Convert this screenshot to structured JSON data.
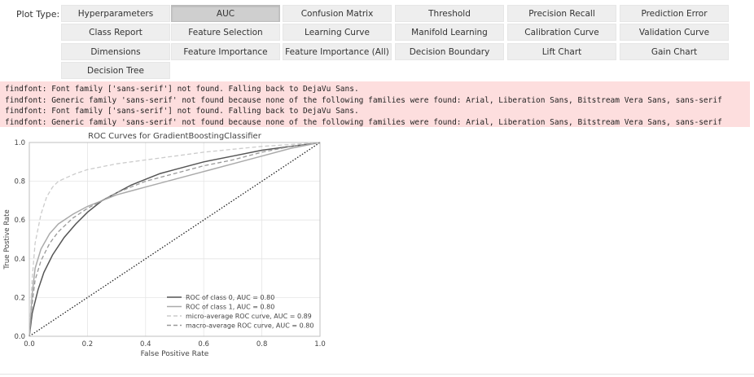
{
  "plot_type_label": "Plot Type:",
  "buttons": [
    {
      "label": "Hyperparameters",
      "active": false
    },
    {
      "label": "AUC",
      "active": true
    },
    {
      "label": "Confusion Matrix",
      "active": false
    },
    {
      "label": "Threshold",
      "active": false
    },
    {
      "label": "Precision Recall",
      "active": false
    },
    {
      "label": "Prediction Error",
      "active": false
    },
    {
      "label": "Class Report",
      "active": false
    },
    {
      "label": "Feature Selection",
      "active": false
    },
    {
      "label": "Learning Curve",
      "active": false
    },
    {
      "label": "Manifold Learning",
      "active": false
    },
    {
      "label": "Calibration Curve",
      "active": false
    },
    {
      "label": "Validation Curve",
      "active": false
    },
    {
      "label": "Dimensions",
      "active": false
    },
    {
      "label": "Feature Importance",
      "active": false
    },
    {
      "label": "Feature Importance (All)",
      "active": false
    },
    {
      "label": "Decision Boundary",
      "active": false
    },
    {
      "label": "Lift Chart",
      "active": false
    },
    {
      "label": "Gain Chart",
      "active": false
    },
    {
      "label": "Decision Tree",
      "active": false
    }
  ],
  "log": {
    "lines": [
      "findfont: Font family ['sans-serif'] not found. Falling back to DejaVu Sans.",
      "findfont: Generic family 'sans-serif' not found because none of the following families were found: Arial, Liberation Sans, Bitstream Vera Sans, sans-serif",
      "findfont: Font family ['sans-serif'] not found. Falling back to DejaVu Sans.",
      "findfont: Generic family 'sans-serif' not found because none of the following families were found: Arial, Liberation Sans, Bitstream Vera Sans, sans-serif"
    ]
  },
  "chart_data": {
    "type": "line",
    "title": "ROC Curves for GradientBoostingClassifier",
    "xlabel": "False Positive Rate",
    "ylabel": "True Postive Rate",
    "xlim": [
      0,
      1
    ],
    "ylim": [
      0,
      1
    ],
    "xticks": [
      "0.0",
      "0.2",
      "0.4",
      "0.6",
      "0.8",
      "1.0"
    ],
    "yticks": [
      "0.0",
      "0.2",
      "0.4",
      "0.6",
      "0.8",
      "1.0"
    ],
    "grid": true,
    "legend_position": "lower-right",
    "series": [
      {
        "name": "ROC of class 0, AUC = 0.80",
        "color": "#555555",
        "dash": "solid",
        "x": [
          0,
          0.01,
          0.03,
          0.05,
          0.08,
          0.12,
          0.16,
          0.2,
          0.25,
          0.3,
          0.35,
          0.4,
          0.45,
          0.5,
          0.6,
          0.7,
          0.8,
          0.9,
          1.0
        ],
        "y": [
          0,
          0.12,
          0.24,
          0.33,
          0.42,
          0.51,
          0.58,
          0.64,
          0.7,
          0.74,
          0.78,
          0.81,
          0.84,
          0.86,
          0.9,
          0.93,
          0.96,
          0.98,
          1.0
        ]
      },
      {
        "name": "ROC of class 1, AUC = 0.80",
        "color": "#aaaaaa",
        "dash": "solid",
        "x": [
          0,
          0.01,
          0.02,
          0.04,
          0.07,
          0.1,
          0.15,
          0.2,
          0.25,
          0.3,
          0.35,
          0.4,
          0.5,
          0.6,
          0.7,
          0.8,
          0.9,
          1.0
        ],
        "y": [
          0,
          0.22,
          0.35,
          0.45,
          0.53,
          0.58,
          0.63,
          0.67,
          0.7,
          0.73,
          0.75,
          0.77,
          0.81,
          0.85,
          0.89,
          0.93,
          0.97,
          1.0
        ]
      },
      {
        "name": "micro-average ROC curve, AUC = 0.89",
        "color": "#cccccc",
        "dash": "5,3",
        "x": [
          0,
          0.01,
          0.02,
          0.04,
          0.06,
          0.08,
          0.1,
          0.13,
          0.16,
          0.2,
          0.3,
          0.4,
          0.5,
          0.6,
          0.7,
          0.8,
          0.9,
          1.0
        ],
        "y": [
          0,
          0.3,
          0.48,
          0.63,
          0.72,
          0.77,
          0.8,
          0.82,
          0.84,
          0.86,
          0.89,
          0.91,
          0.93,
          0.95,
          0.965,
          0.98,
          0.99,
          1.0
        ]
      },
      {
        "name": "macro-average ROC curve, AUC = 0.80",
        "color": "#999999",
        "dash": "5,3",
        "x": [
          0,
          0.01,
          0.02,
          0.04,
          0.07,
          0.1,
          0.15,
          0.2,
          0.25,
          0.3,
          0.35,
          0.4,
          0.5,
          0.6,
          0.7,
          0.8,
          0.9,
          1.0
        ],
        "y": [
          0,
          0.17,
          0.29,
          0.39,
          0.48,
          0.54,
          0.61,
          0.66,
          0.7,
          0.74,
          0.77,
          0.8,
          0.84,
          0.88,
          0.91,
          0.95,
          0.98,
          1.0
        ]
      },
      {
        "name": "",
        "color": "#222222",
        "dash": "1.5,2",
        "x": [
          0,
          1
        ],
        "y": [
          0,
          1
        ]
      }
    ]
  }
}
